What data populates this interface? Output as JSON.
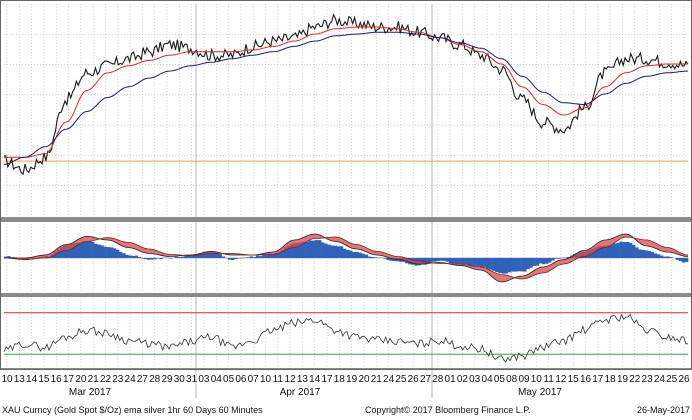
{
  "colors": {
    "price": "#1a1a1a",
    "ema_fast": "#d72b2b",
    "ema_slow": "#1a1f5c",
    "support": "#f0a030",
    "macd_pos": "#2e63b8",
    "macd_band": "#d94a4a",
    "rsi_upper": "#d72b2b",
    "rsi_lower": "#22b14c",
    "grid": "#bbbbbb",
    "separator": "#8a8a8a"
  },
  "chart_data": [
    {
      "type": "line",
      "panel": "price",
      "grid": true,
      "series": [
        {
          "key": "price",
          "values": [
            0.2,
            0.15,
            0.22,
            0.55,
            0.7,
            0.74,
            0.78,
            0.82,
            0.86,
            0.84,
            0.8,
            0.8,
            0.85,
            0.88,
            0.9,
            0.96,
            1.0,
            0.98,
            0.96,
            0.96,
            0.93,
            0.9,
            0.86,
            0.8,
            0.72,
            0.55,
            0.42,
            0.38,
            0.5,
            0.7,
            0.78,
            0.78,
            0.76,
            0.74
          ]
        },
        {
          "key": "ema_fast",
          "values": [
            0.22,
            0.22,
            0.24,
            0.42,
            0.6,
            0.7,
            0.74,
            0.77,
            0.8,
            0.82,
            0.82,
            0.82,
            0.83,
            0.85,
            0.88,
            0.92,
            0.95,
            0.96,
            0.96,
            0.95,
            0.93,
            0.9,
            0.86,
            0.82,
            0.75,
            0.62,
            0.52,
            0.46,
            0.5,
            0.62,
            0.7,
            0.74,
            0.75,
            0.75
          ]
        },
        {
          "key": "ema_slow",
          "values": [
            0.18,
            0.22,
            0.28,
            0.38,
            0.48,
            0.56,
            0.62,
            0.67,
            0.71,
            0.74,
            0.76,
            0.78,
            0.8,
            0.82,
            0.85,
            0.88,
            0.91,
            0.92,
            0.93,
            0.93,
            0.92,
            0.9,
            0.87,
            0.84,
            0.78,
            0.68,
            0.59,
            0.53,
            0.52,
            0.58,
            0.64,
            0.68,
            0.7,
            0.71
          ]
        }
      ],
      "support_level": 0.22
    },
    {
      "type": "area",
      "panel": "macd",
      "series": [
        {
          "key": "histogram",
          "values": [
            0.05,
            -0.05,
            0.05,
            0.45,
            0.55,
            0.35,
            0.1,
            -0.05,
            0.0,
            0.1,
            0.2,
            -0.05,
            0.05,
            0.15,
            0.5,
            0.6,
            0.4,
            0.2,
            0.0,
            -0.1,
            -0.25,
            -0.1,
            -0.2,
            -0.3,
            -0.5,
            -0.45,
            -0.2,
            0.0,
            0.2,
            0.4,
            0.55,
            0.25,
            0.05,
            -0.15
          ]
        },
        {
          "key": "macd_line",
          "values": [
            0.0,
            0.0,
            0.1,
            0.45,
            0.72,
            0.6,
            0.35,
            0.15,
            0.05,
            0.1,
            0.22,
            0.1,
            0.1,
            0.2,
            0.6,
            0.8,
            0.55,
            0.3,
            0.1,
            -0.05,
            -0.2,
            -0.15,
            -0.25,
            -0.4,
            -0.8,
            -0.6,
            -0.3,
            -0.05,
            0.25,
            0.6,
            0.8,
            0.4,
            0.2,
            0.05
          ]
        },
        {
          "key": "signal_line",
          "values": [
            0.0,
            -0.05,
            0.0,
            0.25,
            0.55,
            0.68,
            0.52,
            0.3,
            0.12,
            0.08,
            0.15,
            0.15,
            0.1,
            0.12,
            0.35,
            0.65,
            0.7,
            0.45,
            0.22,
            0.05,
            -0.1,
            -0.18,
            -0.2,
            -0.3,
            -0.55,
            -0.7,
            -0.5,
            -0.2,
            0.05,
            0.35,
            0.7,
            0.6,
            0.35,
            0.1
          ]
        }
      ]
    },
    {
      "type": "line",
      "panel": "rsi",
      "series": [
        {
          "key": "rsi",
          "values": [
            0.25,
            0.35,
            0.3,
            0.45,
            0.55,
            0.5,
            0.4,
            0.35,
            0.3,
            0.38,
            0.45,
            0.3,
            0.4,
            0.55,
            0.65,
            0.7,
            0.55,
            0.45,
            0.4,
            0.38,
            0.35,
            0.4,
            0.32,
            0.28,
            0.12,
            0.18,
            0.3,
            0.4,
            0.55,
            0.7,
            0.75,
            0.55,
            0.45,
            0.4
          ]
        }
      ],
      "upper_level": 0.8,
      "lower_level": 0.2
    }
  ],
  "x_axis": {
    "ticks": [
      "10",
      "13",
      "14",
      "15",
      "16",
      "17",
      "20",
      "21",
      "22",
      "23",
      "24",
      "27",
      "28",
      "29",
      "30",
      "31",
      "03",
      "04",
      "05",
      "06",
      "07",
      "10",
      "11",
      "12",
      "13",
      "14",
      "17",
      "18",
      "19",
      "20",
      "21",
      "24",
      "25",
      "26",
      "27",
      "28",
      "01",
      "02",
      "03",
      "04",
      "05",
      "08",
      "09",
      "10",
      "11",
      "12",
      "15",
      "16",
      "17",
      "18",
      "19",
      "22",
      "23",
      "24",
      "25",
      "26"
    ],
    "months": [
      "Mar 2017",
      "Apr 2017",
      "May 2017"
    ]
  },
  "footer": {
    "left": "XAU Curncy (Gold Spot   $/Oz) ema silver 1hr 60 Days 60 Minutes",
    "center": "Copyright© 2017 Bloomberg Finance L.P.",
    "right": "26-May-2017"
  }
}
